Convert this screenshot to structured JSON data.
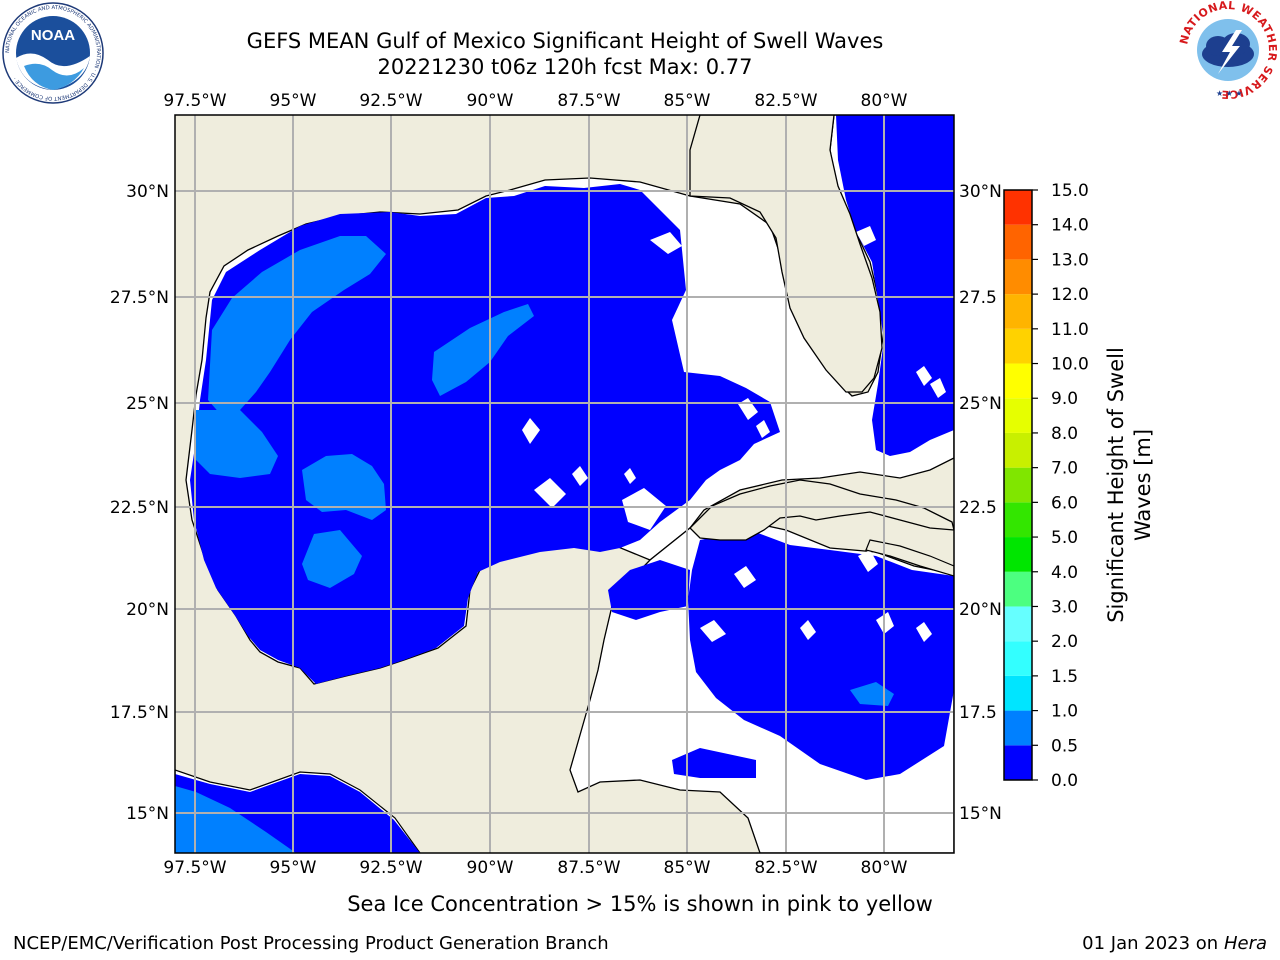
{
  "title": "GEFS MEAN Gulf of Mexico Significant Height of Swell Waves",
  "subtitle": "20221230 t06z 120h fcst   Max: 0.77",
  "note": "Sea Ice Concentration > 15% is shown in pink to yellow",
  "footer_left": "NCEP/EMC/Verification Post Processing Product Generation Branch",
  "footer_date": "01 Jan 2023 on ",
  "footer_machine": "Hera",
  "logos": {
    "noaa_text": "NOAA",
    "noaa_ring": "NATIONAL OCEANIC AND ATMOSPHERIC ADMINISTRATION · U.S. DEPARTMENT OF COMMERCE ·",
    "nws_ring": "NATIONAL WEATHER SERVICE"
  },
  "map": {
    "lon_ticks": [
      "97.5°W",
      "95°W",
      "92.5°W",
      "90°W",
      "87.5°W",
      "85°W",
      "82.5°W",
      "80°W"
    ],
    "lat_ticks_left": [
      "30°N",
      "27.5°N",
      "25°N",
      "22.5°N",
      "20°N",
      "17.5°N",
      "15°N"
    ],
    "lat_ticks_right": [
      "30°N",
      "27.5",
      "25°N",
      "22.5",
      "20°N",
      "17.5",
      "15°N"
    ]
  },
  "colorbar": {
    "label": "Significant Height of Swell Waves [m]",
    "label_line1": "Significant Height of Swell",
    "label_line2": "Waves [m]",
    "ticks": [
      "15.0",
      "14.0",
      "13.0",
      "12.0",
      "11.0",
      "10.0",
      "9.0",
      "8.0",
      "7.0",
      "6.0",
      "5.0",
      "4.0",
      "3.0",
      "2.0",
      "1.5",
      "1.0",
      "0.5",
      "0.0"
    ],
    "colors_bottom_to_top": [
      "#0000ff",
      "#0080ff",
      "#00e5ff",
      "#33ffff",
      "#66ffff",
      "#a0ffff",
      "#4cff80",
      "#00e600",
      "#33e600",
      "#80e600",
      "#c8f000",
      "#e6ff00",
      "#ffff00",
      "#ffd200",
      "#ffb400",
      "#ff8c00",
      "#ff6400",
      "#ff3200",
      "#ff0000"
    ]
  },
  "chart_data": {
    "type": "heatmap",
    "title": "GEFS MEAN Gulf of Mexico Significant Height of Swell Waves",
    "subtitle": "20221230 t06z 120h fcst   Max: 0.77",
    "field": "Significant Height of Swell Waves [m]",
    "max": 0.77,
    "lon_range": [
      -98.5,
      -78.7
    ],
    "lat_range": [
      14.0,
      31.8
    ],
    "levels": [
      0.0,
      0.5,
      1.0,
      1.5,
      2.0,
      3.0,
      4.0,
      5.0,
      6.0,
      7.0,
      8.0,
      9.0,
      10.0,
      11.0,
      12.0,
      13.0,
      14.0,
      15.0
    ],
    "grid": true
  }
}
